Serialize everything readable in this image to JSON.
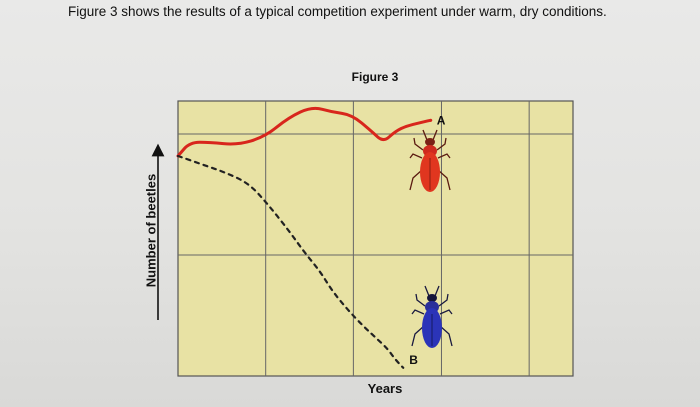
{
  "intro_text": "Figure 3 shows the results of a typical competition experiment under warm, dry conditions.",
  "chart_data": {
    "type": "line",
    "title": "Figure 3",
    "xlabel": "Years",
    "ylabel": "Number of beetles",
    "grid": true,
    "xlim": [
      0,
      10
    ],
    "ylim": [
      0,
      10
    ],
    "series": [
      {
        "name": "A",
        "color": "#d8261c",
        "style": "solid",
        "x": [
          0,
          0.3,
          0.8,
          1.5,
          2.2,
          2.8,
          3.4,
          3.9,
          4.4,
          4.9,
          5.2,
          5.5,
          5.8,
          6.1,
          6.4
        ],
        "y": [
          8.0,
          8.5,
          8.5,
          8.4,
          8.7,
          9.4,
          9.8,
          9.6,
          9.5,
          8.9,
          8.5,
          8.9,
          9.1,
          9.2,
          9.3
        ]
      },
      {
        "name": "B",
        "color": "#222222",
        "style": "dashed",
        "x": [
          0,
          0.6,
          1.2,
          1.8,
          2.3,
          2.8,
          3.2,
          3.6,
          3.9,
          4.3,
          4.7,
          5.0,
          5.3,
          5.5,
          5.7
        ],
        "y": [
          8.0,
          7.7,
          7.4,
          7.0,
          6.2,
          5.3,
          4.5,
          3.8,
          3.1,
          2.4,
          1.8,
          1.4,
          1.0,
          0.6,
          0.3
        ]
      }
    ]
  },
  "icons": {
    "beetle_a": "red-beetle-icon",
    "beetle_b": "blue-beetle-icon"
  }
}
